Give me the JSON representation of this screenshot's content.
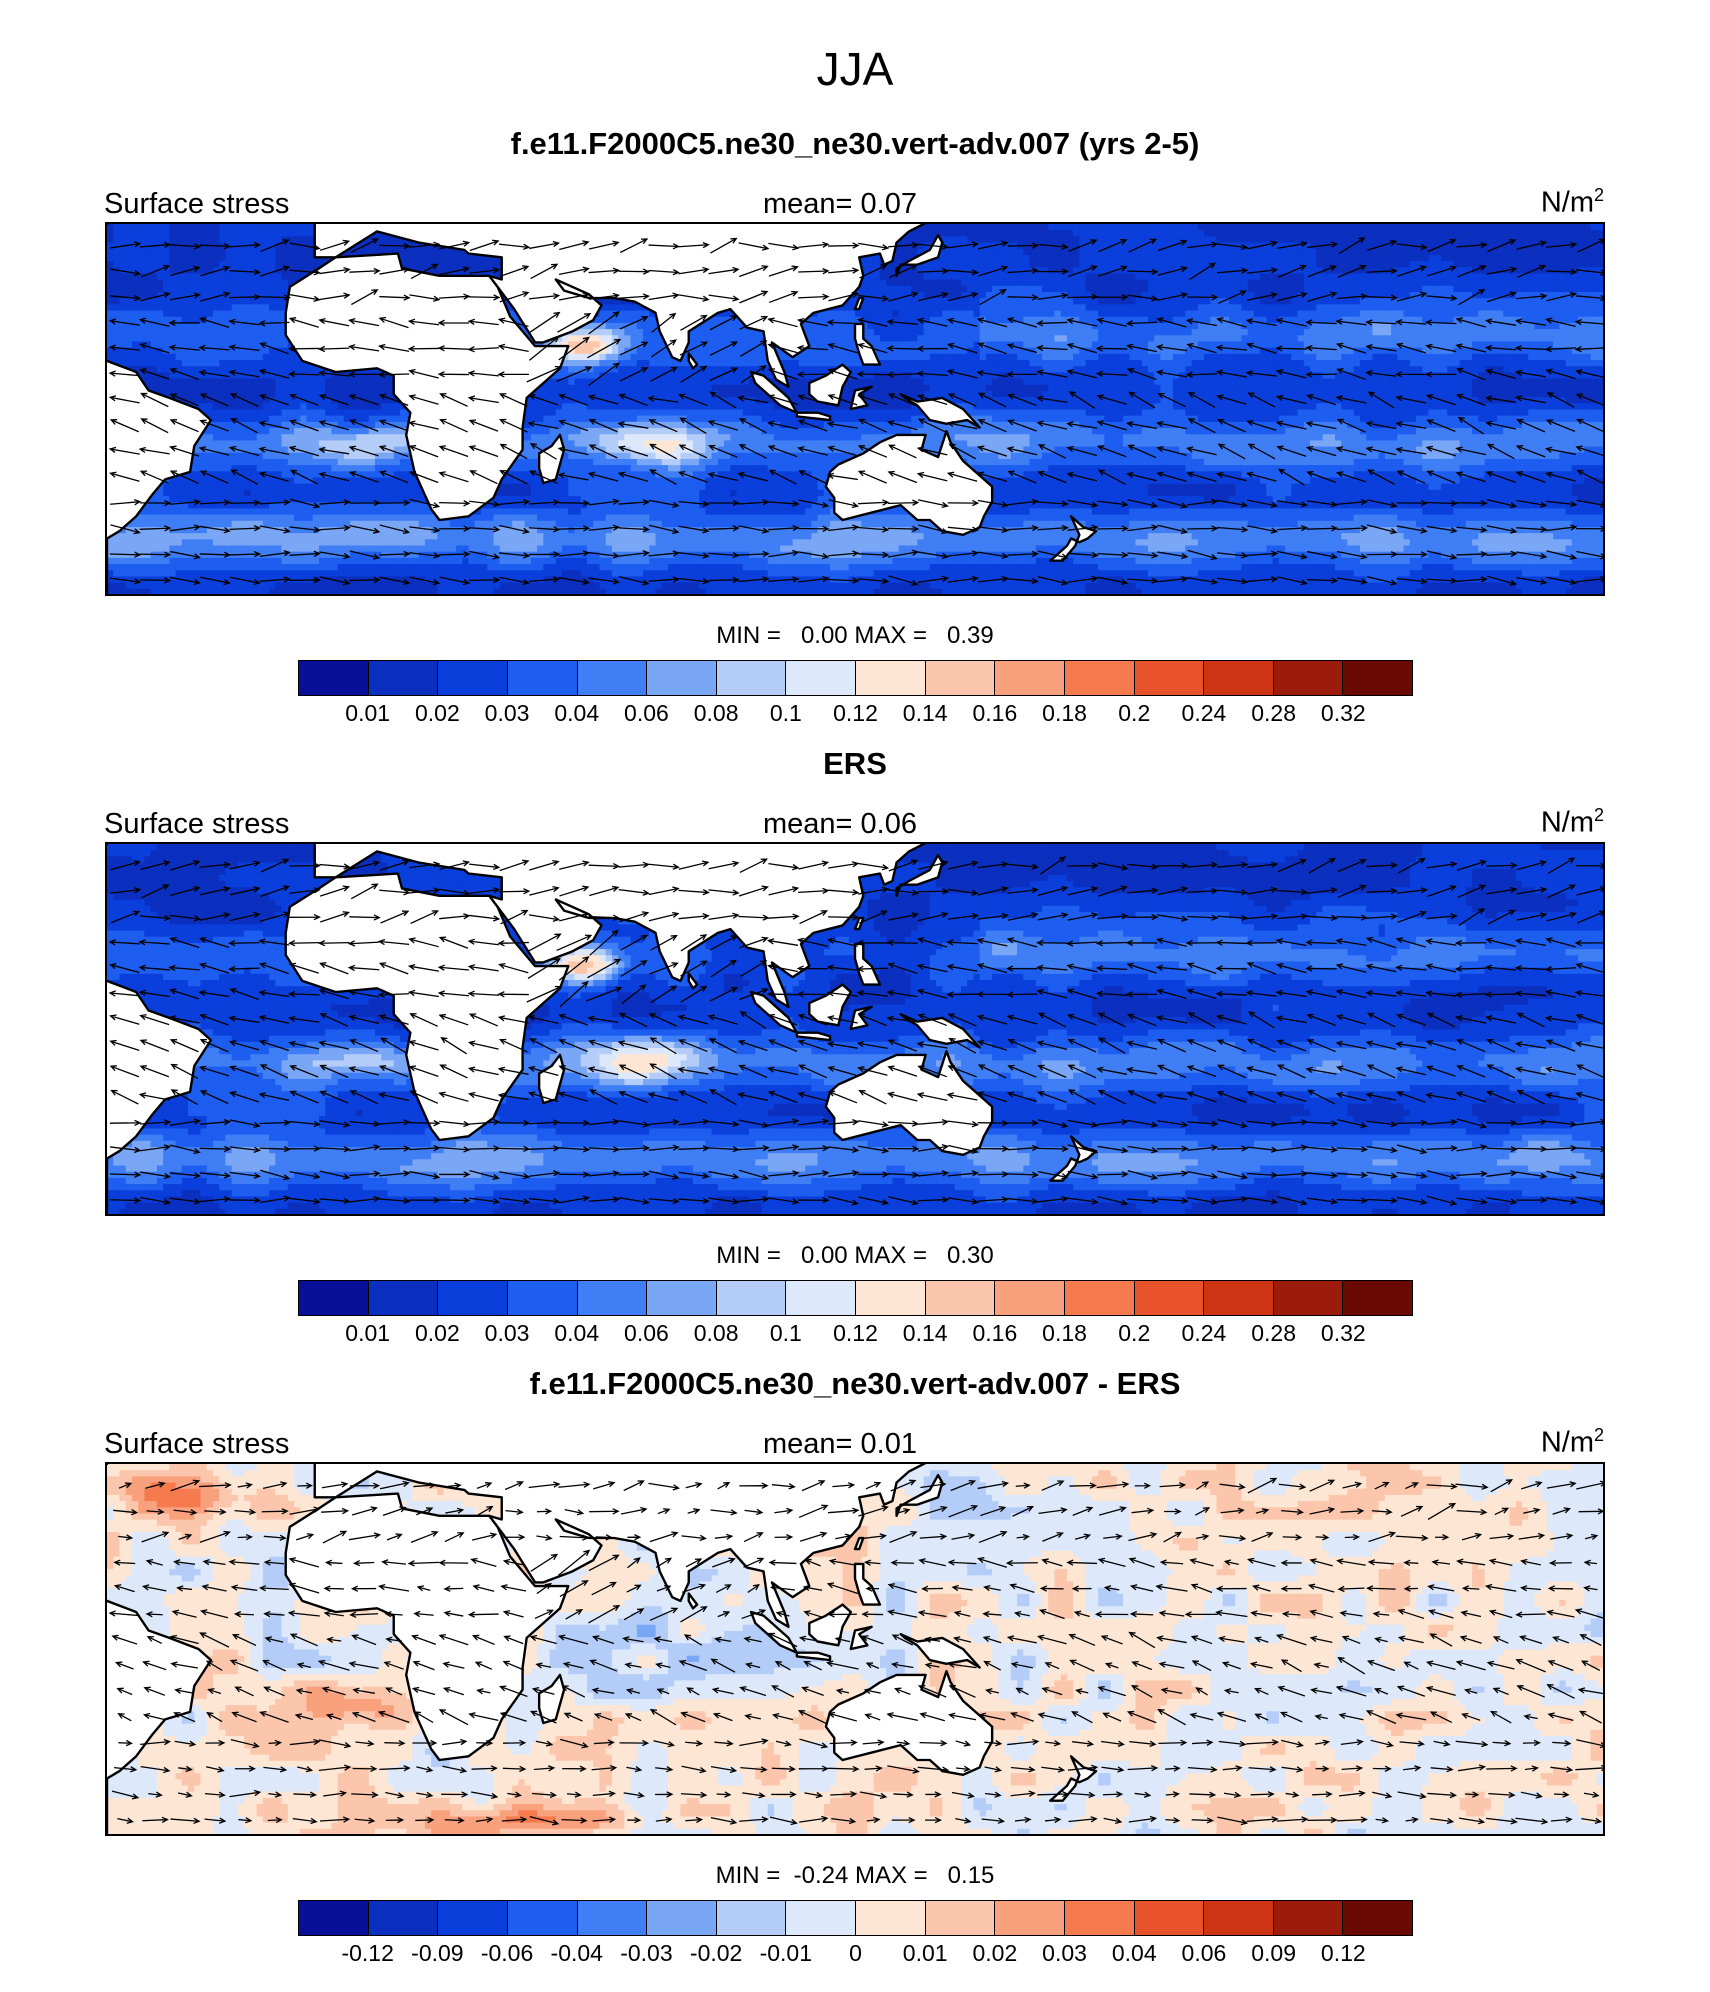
{
  "figure_title": "JJA",
  "chart_data": [
    {
      "type": "heatmap",
      "title": "f.e11.F2000C5.ne30_ne30.vert-adv.007 (yrs 2-5)",
      "left_label": "Surface stress",
      "mean_label": "mean=   0.07",
      "mean": 0.07,
      "units": "N/m2",
      "min": 0.0,
      "max": 0.39,
      "minmax_label": "MIN =   0.00 MAX =   0.39",
      "colorbar_ticks": [
        "0.01",
        "0.02",
        "0.03",
        "0.04",
        "0.06",
        "0.08",
        "0.1",
        "0.12",
        "0.14",
        "0.16",
        "0.18",
        "0.2",
        "0.24",
        "0.28",
        "0.32"
      ],
      "colorbar_colors": [
        "#08109a",
        "#0b2fbf",
        "#0a3fdc",
        "#1d5df0",
        "#3f7ef4",
        "#7aa6f6",
        "#b3cdf8",
        "#dde9fb",
        "#fde6d4",
        "#fbc6ab",
        "#f9a07c",
        "#f57b4f",
        "#e8532b",
        "#cc3414",
        "#9b1c0a",
        "#6b0a05"
      ],
      "wind_vector_field": true
    },
    {
      "type": "heatmap",
      "title": "ERS",
      "left_label": "Surface stress",
      "mean_label": "mean=   0.06",
      "mean": 0.06,
      "units": "N/m2",
      "min": 0.0,
      "max": 0.3,
      "minmax_label": "MIN =   0.00 MAX =   0.30",
      "colorbar_ticks": [
        "0.01",
        "0.02",
        "0.03",
        "0.04",
        "0.06",
        "0.08",
        "0.1",
        "0.12",
        "0.14",
        "0.16",
        "0.18",
        "0.2",
        "0.24",
        "0.28",
        "0.32"
      ],
      "colorbar_colors": [
        "#08109a",
        "#0b2fbf",
        "#0a3fdc",
        "#1d5df0",
        "#3f7ef4",
        "#7aa6f6",
        "#b3cdf8",
        "#dde9fb",
        "#fde6d4",
        "#fbc6ab",
        "#f9a07c",
        "#f57b4f",
        "#e8532b",
        "#cc3414",
        "#9b1c0a",
        "#6b0a05"
      ],
      "wind_vector_field": true
    },
    {
      "type": "heatmap",
      "title": "f.e11.F2000C5.ne30_ne30.vert-adv.007 - ERS",
      "left_label": "Surface stress",
      "mean_label": "mean=   0.01",
      "mean": 0.01,
      "units": "N/m2",
      "min": -0.24,
      "max": 0.15,
      "minmax_label": "MIN =  -0.24 MAX =   0.15",
      "colorbar_ticks": [
        "-0.12",
        "-0.09",
        "-0.06",
        "-0.04",
        "-0.03",
        "-0.02",
        "-0.01",
        "0",
        "0.01",
        "0.02",
        "0.03",
        "0.04",
        "0.06",
        "0.09",
        "0.12"
      ],
      "colorbar_colors": [
        "#08109a",
        "#0b2fbf",
        "#0a3fdc",
        "#1d5df0",
        "#3f7ef4",
        "#7aa6f6",
        "#b3cdf8",
        "#dde9fb",
        "#fde6d4",
        "#fbc6ab",
        "#f9a07c",
        "#f57b4f",
        "#e8532b",
        "#cc3414",
        "#9b1c0a",
        "#6b0a05"
      ],
      "wind_vector_field": true
    }
  ]
}
